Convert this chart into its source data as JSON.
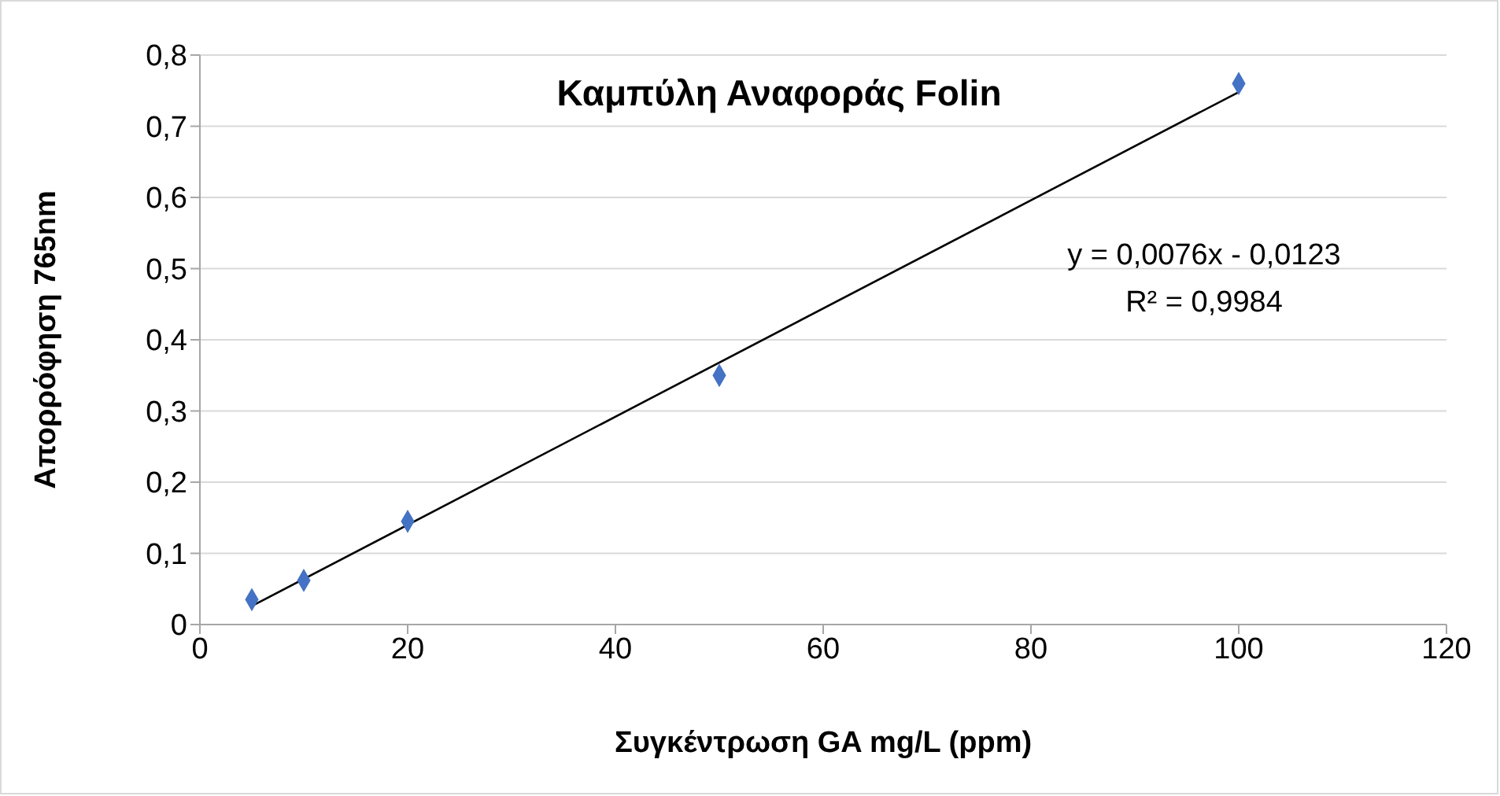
{
  "chart_data": {
    "type": "scatter",
    "title": "Καμπύλη Αναφοράς Folin",
    "xlabel": "Συγκέντρωση GA mg/L (ppm)",
    "ylabel": "Απορρόφηση 765nm",
    "annotations": [
      "y = 0,0076x - 0,0123",
      "R² = 0,9984"
    ],
    "series": [
      {
        "color": "#4472c4",
        "marker": "diamond",
        "x": [
          5,
          10,
          20,
          50,
          100
        ],
        "values": [
          0.035,
          0.062,
          0.145,
          0.35,
          0.76
        ]
      },
      {
        "type": "line",
        "color": "#000000",
        "marker": "none",
        "x": [
          5,
          100
        ],
        "values": [
          0.026,
          0.748
        ]
      }
    ],
    "xlim": [
      0,
      120
    ],
    "xticks": [
      0,
      20,
      40,
      60,
      80,
      100,
      120
    ],
    "ylim": [
      0,
      0.8
    ],
    "yticks": [
      0,
      {
        "value": 0.1,
        "label": "0,1"
      },
      {
        "value": 0.2,
        "label": "0,2"
      },
      {
        "value": 0.3,
        "label": "0,3"
      },
      {
        "value": 0.4,
        "label": "0,4"
      },
      {
        "value": 0.5,
        "label": "0,5"
      },
      {
        "value": 0.6,
        "label": "0,6"
      },
      {
        "value": 0.7,
        "label": "0,7"
      },
      {
        "value": 0.8,
        "label": "0,8"
      }
    ],
    "grid": "y"
  }
}
